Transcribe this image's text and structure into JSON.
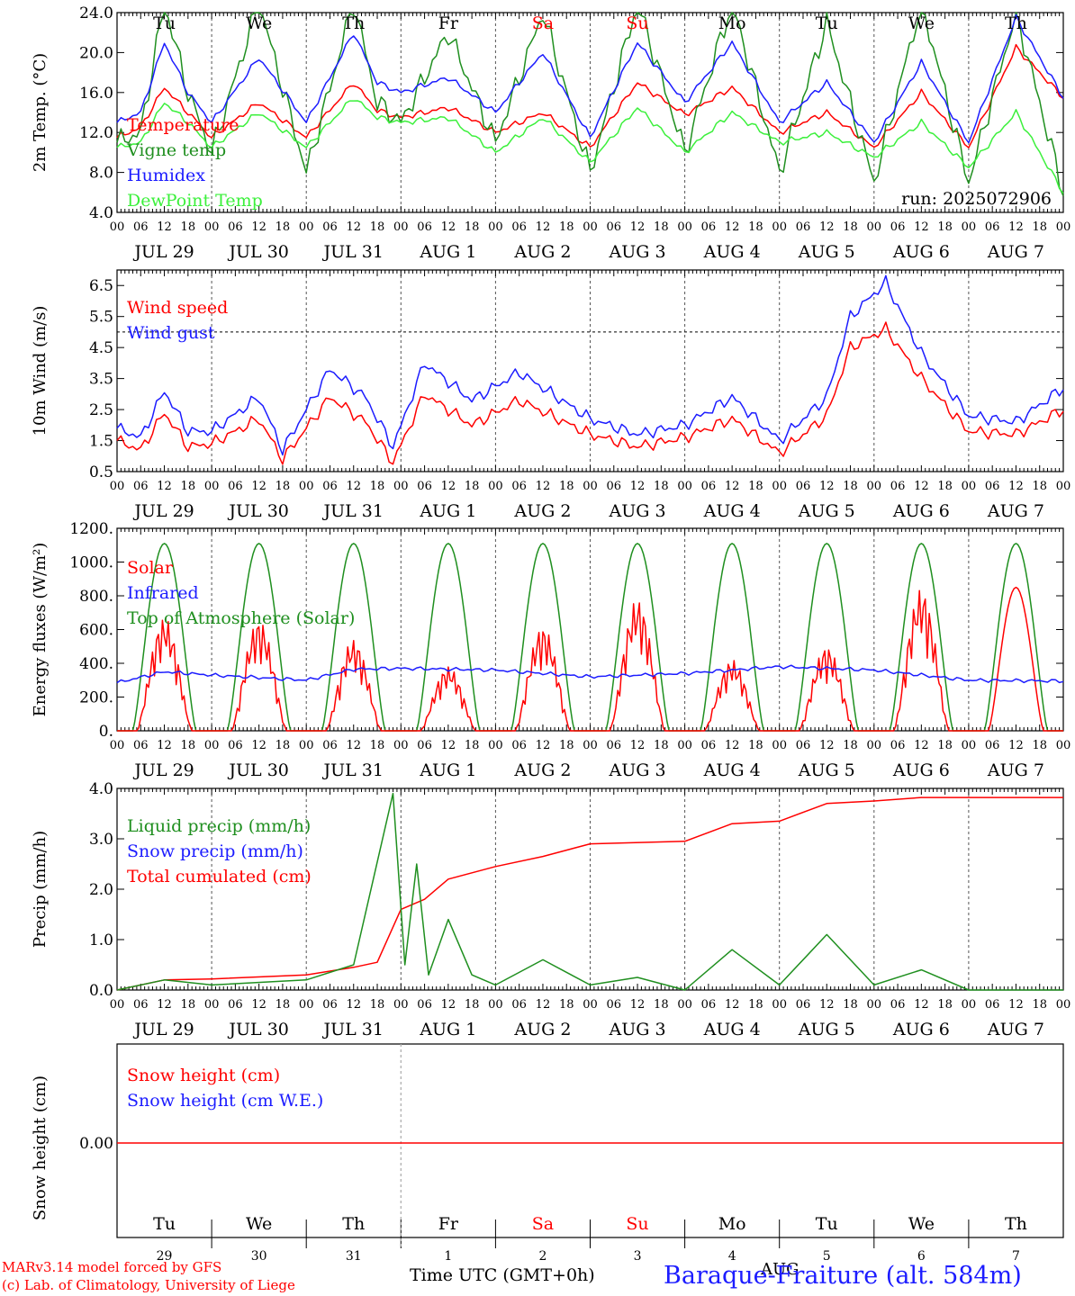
{
  "colors": {
    "red": "#ff0000",
    "darkgreen": "#1f8f1f",
    "blue": "#1c1cff",
    "lightgreen": "#3cf03c",
    "black": "#000000",
    "grid": "#555555"
  },
  "day_names": [
    "Tu",
    "We",
    "Th",
    "Fr",
    "Sa",
    "Su",
    "Mo",
    "Tu",
    "We",
    "Th"
  ],
  "weekend_flags": [
    false,
    false,
    false,
    false,
    true,
    true,
    false,
    false,
    false,
    false
  ],
  "day_labels": [
    "JUL 29",
    "JUL 30",
    "JUL 31",
    "AUG  1",
    "AUG  2",
    "AUG  3",
    "AUG  4",
    "AUG  5",
    "AUG  6",
    "AUG  7"
  ],
  "hour_ticks": [
    "00",
    "06",
    "12",
    "18"
  ],
  "day_numbers": [
    "29",
    "30",
    "31",
    "1",
    "2",
    "3",
    "4",
    "5",
    "6",
    "7"
  ],
  "month_label": "AUG",
  "footer": {
    "credit_line1": "MARv3.14 model forced by GFS",
    "credit_line2": "(c) Lab. of Climatology, University of Liege",
    "xaxis_title": "Time UTC (GMT+0h)",
    "station": "Baraque-Fraiture (alt. 584m)"
  },
  "chart_data": [
    {
      "type": "line",
      "id": "temp",
      "ylabel": "2m Temp. (°C)",
      "ylim": [
        4,
        24
      ],
      "yticks": [
        "4.0",
        "8.0",
        "12.0",
        "16.0",
        "20.0",
        "24.0"
      ],
      "run_label": "run: 2025072906",
      "series": [
        {
          "name": "Temperature",
          "color": "#ff0000",
          "values": [
            [
              0,
              11.5
            ],
            [
              6,
              12.5
            ],
            [
              12,
              16.5
            ],
            [
              18,
              14
            ],
            [
              24,
              11.5
            ],
            [
              36,
              15
            ],
            [
              48,
              11.5
            ],
            [
              60,
              17
            ],
            [
              66,
              14.2
            ],
            [
              72,
              13.5
            ],
            [
              84,
              14.5
            ],
            [
              96,
              12
            ],
            [
              108,
              14
            ],
            [
              120,
              10.5
            ],
            [
              132,
              17
            ],
            [
              144,
              13.8
            ],
            [
              156,
              16.5
            ],
            [
              168,
              12
            ],
            [
              180,
              14
            ],
            [
              192,
              10.5
            ],
            [
              204,
              16
            ],
            [
              216,
              10.5
            ],
            [
              228,
              20.5
            ],
            [
              240,
              15.5
            ]
          ]
        },
        {
          "name": "Vigne temp",
          "color": "#1f8f1f",
          "values": [
            [
              0,
              11
            ],
            [
              6,
              12
            ],
            [
              12,
              25
            ],
            [
              18,
              16
            ],
            [
              24,
              10
            ],
            [
              36,
              25
            ],
            [
              48,
              8
            ],
            [
              60,
              25
            ],
            [
              66,
              15
            ],
            [
              72,
              13
            ],
            [
              84,
              22
            ],
            [
              96,
              11
            ],
            [
              108,
              24
            ],
            [
              120,
              8
            ],
            [
              132,
              25
            ],
            [
              144,
              10
            ],
            [
              156,
              25
            ],
            [
              168,
              8
            ],
            [
              180,
              23
            ],
            [
              192,
              7
            ],
            [
              204,
              25
            ],
            [
              216,
              7
            ],
            [
              228,
              24
            ],
            [
              240,
              6
            ]
          ]
        },
        {
          "name": "Humidex",
          "color": "#1c1cff",
          "values": [
            [
              0,
              13
            ],
            [
              6,
              14
            ],
            [
              12,
              21
            ],
            [
              18,
              16
            ],
            [
              24,
              13
            ],
            [
              36,
              19.5
            ],
            [
              48,
              13
            ],
            [
              60,
              22
            ],
            [
              66,
              17
            ],
            [
              72,
              16
            ],
            [
              84,
              17.5
            ],
            [
              96,
              14
            ],
            [
              108,
              20
            ],
            [
              120,
              11.5
            ],
            [
              132,
              21
            ],
            [
              144,
              15
            ],
            [
              156,
              21
            ],
            [
              168,
              13
            ],
            [
              180,
              17
            ],
            [
              192,
              11
            ],
            [
              204,
              19
            ],
            [
              216,
              11
            ],
            [
              228,
              23.5
            ],
            [
              240,
              15.5
            ]
          ]
        },
        {
          "name": "DewPoint Temp",
          "color": "#3cf03c",
          "values": [
            [
              0,
              10.5
            ],
            [
              6,
              11
            ],
            [
              12,
              15
            ],
            [
              18,
              13
            ],
            [
              24,
              10.5
            ],
            [
              36,
              14
            ],
            [
              48,
              10.5
            ],
            [
              60,
              15.5
            ],
            [
              66,
              13.5
            ],
            [
              72,
              13
            ],
            [
              84,
              13.5
            ],
            [
              96,
              10
            ],
            [
              108,
              13.5
            ],
            [
              120,
              9
            ],
            [
              132,
              14.5
            ],
            [
              144,
              10
            ],
            [
              156,
              14
            ],
            [
              168,
              11
            ],
            [
              180,
              12
            ],
            [
              192,
              9.5
            ],
            [
              204,
              13
            ],
            [
              216,
              8.5
            ],
            [
              228,
              14
            ],
            [
              240,
              6
            ]
          ]
        }
      ]
    },
    {
      "type": "line",
      "id": "wind",
      "ylabel": "10m Wind (m/s)",
      "ylim": [
        0.5,
        7
      ],
      "yticks": [
        "0.5",
        "1.5",
        "2.5",
        "3.5",
        "4.5",
        "5.5",
        "6.5"
      ],
      "threshold": 5,
      "series": [
        {
          "name": "Wind speed",
          "color": "#ff0000",
          "values": [
            [
              0,
              1.5
            ],
            [
              6,
              1.2
            ],
            [
              12,
              2.4
            ],
            [
              18,
              1.3
            ],
            [
              24,
              1.4
            ],
            [
              36,
              2.2
            ],
            [
              42,
              0.9
            ],
            [
              54,
              2.9
            ],
            [
              63,
              2.1
            ],
            [
              70,
              0.8
            ],
            [
              78,
              3
            ],
            [
              90,
              2
            ],
            [
              102,
              2.8
            ],
            [
              120,
              1.7
            ],
            [
              132,
              1.3
            ],
            [
              144,
              1.6
            ],
            [
              156,
              2.2
            ],
            [
              168,
              1.1
            ],
            [
              180,
              2.3
            ],
            [
              186,
              4.5
            ],
            [
              195,
              5.1
            ],
            [
              204,
              3.5
            ],
            [
              216,
              1.8
            ],
            [
              228,
              1.7
            ],
            [
              240,
              2.5
            ]
          ]
        },
        {
          "name": "Wind gust",
          "color": "#1c1cff",
          "values": [
            [
              0,
              1.9
            ],
            [
              6,
              1.6
            ],
            [
              12,
              3.1
            ],
            [
              18,
              1.8
            ],
            [
              24,
              1.8
            ],
            [
              36,
              2.9
            ],
            [
              42,
              1.2
            ],
            [
              54,
              3.8
            ],
            [
              63,
              2.9
            ],
            [
              70,
              1.3
            ],
            [
              78,
              4
            ],
            [
              90,
              2.8
            ],
            [
              102,
              3.7
            ],
            [
              120,
              2.2
            ],
            [
              132,
              1.7
            ],
            [
              144,
              2
            ],
            [
              156,
              2.9
            ],
            [
              168,
              1.5
            ],
            [
              180,
              2.9
            ],
            [
              186,
              5.5
            ],
            [
              195,
              6.6
            ],
            [
              204,
              4.3
            ],
            [
              216,
              2.3
            ],
            [
              228,
              2.1
            ],
            [
              240,
              3.2
            ]
          ]
        }
      ]
    },
    {
      "type": "line",
      "id": "energy",
      "ylabel": "Energy fluxes (W/m²)",
      "ylim": [
        0,
        1200
      ],
      "yticks": [
        "0.",
        "200.",
        "400.",
        "600.",
        "800.",
        "1000.",
        "1200."
      ],
      "series": [
        {
          "name": "Solar",
          "color": "#ff0000",
          "peaks": [
            670,
            660,
            540,
            380,
            620,
            780,
            420,
            500,
            840,
            850
          ]
        },
        {
          "name": "Infrared",
          "color": "#1c1cff",
          "values": [
            [
              0,
              285
            ],
            [
              12,
              350
            ],
            [
              24,
              330
            ],
            [
              48,
              300
            ],
            [
              60,
              365
            ],
            [
              72,
              370
            ],
            [
              96,
              360
            ],
            [
              120,
              320
            ],
            [
              144,
              340
            ],
            [
              168,
              380
            ],
            [
              192,
              360
            ],
            [
              216,
              300
            ],
            [
              240,
              295
            ]
          ]
        },
        {
          "name": "Top of Atmosphere (Solar)",
          "color": "#1f8f1f",
          "peak": 1110
        }
      ]
    },
    {
      "type": "line",
      "id": "precip",
      "ylabel": "Precip (mm/h)",
      "ylim": [
        0,
        4
      ],
      "yticks": [
        "0.0",
        "1.0",
        "2.0",
        "3.0",
        "4.0"
      ],
      "series": [
        {
          "name": "Liquid precip (mm/h)",
          "color": "#1f8f1f",
          "values": [
            [
              0,
              0
            ],
            [
              12,
              0.2
            ],
            [
              24,
              0.1
            ],
            [
              48,
              0.2
            ],
            [
              60,
              0.5
            ],
            [
              70,
              3.9
            ],
            [
              73,
              0.5
            ],
            [
              76,
              2.5
            ],
            [
              79,
              0.3
            ],
            [
              84,
              1.4
            ],
            [
              90,
              0.3
            ],
            [
              96,
              0.1
            ],
            [
              108,
              0.6
            ],
            [
              120,
              0.1
            ],
            [
              132,
              0.25
            ],
            [
              144,
              0
            ],
            [
              156,
              0.8
            ],
            [
              168,
              0.1
            ],
            [
              180,
              1.1
            ],
            [
              192,
              0.1
            ],
            [
              204,
              0.4
            ],
            [
              216,
              0
            ],
            [
              240,
              0
            ]
          ]
        },
        {
          "name": "Snow precip (mm/h)",
          "color": "#1c1cff",
          "values": []
        },
        {
          "name": "Total cumulated (cm)",
          "color": "#ff0000",
          "values": [
            [
              0,
              0
            ],
            [
              12,
              0.2
            ],
            [
              24,
              0.22
            ],
            [
              48,
              0.3
            ],
            [
              60,
              0.45
            ],
            [
              66,
              0.55
            ],
            [
              72,
              1.6
            ],
            [
              78,
              1.8
            ],
            [
              84,
              2.2
            ],
            [
              96,
              2.45
            ],
            [
              108,
              2.65
            ],
            [
              120,
              2.9
            ],
            [
              144,
              2.95
            ],
            [
              156,
              3.3
            ],
            [
              168,
              3.35
            ],
            [
              180,
              3.7
            ],
            [
              192,
              3.75
            ],
            [
              204,
              3.82
            ],
            [
              240,
              3.82
            ]
          ]
        }
      ]
    },
    {
      "type": "line",
      "id": "snow",
      "ylabel": "Snow height (cm)",
      "yticks": [
        "0.00"
      ],
      "series": [
        {
          "name": "Snow height (cm)",
          "color": "#ff0000",
          "values": [
            [
              0,
              0
            ],
            [
              240,
              0
            ]
          ]
        },
        {
          "name": "Snow height (cm W.E.)",
          "color": "#1c1cff",
          "values": []
        }
      ]
    }
  ]
}
